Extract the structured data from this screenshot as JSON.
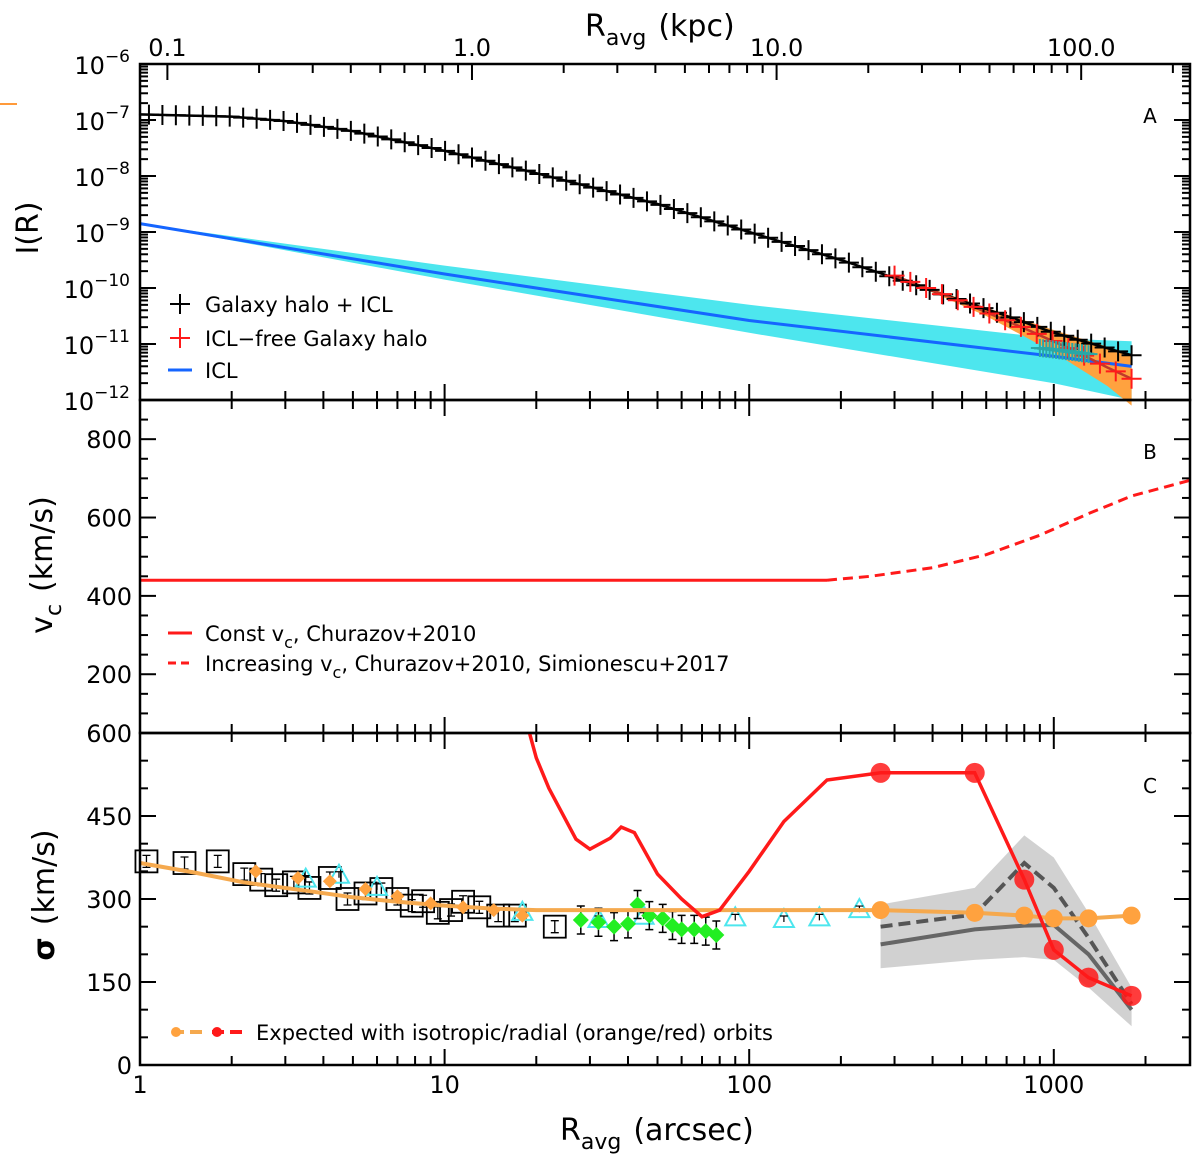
{
  "colors": {
    "black": "#000000",
    "red": "#ff1a1a",
    "blue": "#1565ff",
    "cyan": "#4de6ee",
    "orange": "#ffa23f",
    "orange_line": "#f5a94e",
    "green": "#22ee22",
    "gray": "#666666",
    "lightgray": "#cccccc",
    "accent_mark": "#ff9a3a"
  },
  "chart_data": {
    "type": "line",
    "shared_x": {
      "label": "R",
      "label_sub": "avg",
      "label_unit": "(arcsec)",
      "scale": "log",
      "range": [
        1,
        2800
      ],
      "tick_labels": [
        {
          "v": 1,
          "t": "1"
        },
        {
          "v": 10,
          "t": "10"
        },
        {
          "v": 100,
          "t": "100"
        },
        {
          "v": 1000,
          "t": "1000"
        }
      ]
    },
    "top_x": {
      "label": "R",
      "label_sub": "avg",
      "label_unit": "(kpc)",
      "arcsec_per_kpc": 12.3,
      "tick_labels": [
        {
          "v": 0.1,
          "t": "0.1"
        },
        {
          "v": 1,
          "t": "1.0"
        },
        {
          "v": 10,
          "t": "10.0"
        },
        {
          "v": 100,
          "t": "100.0"
        }
      ]
    },
    "panels": [
      {
        "id": "A",
        "ylabel": "I(R)",
        "yscale": "log",
        "yrange_exp": [
          -12,
          -6
        ],
        "ytick_exps": [
          -12,
          -11,
          -10,
          -9,
          -8,
          -7,
          -6
        ],
        "ytick_base": "10",
        "ytick_sign": "−",
        "legend": [
          {
            "symbol": "plus",
            "color": "black",
            "text": "Galaxy halo + ICL"
          },
          {
            "symbol": "plus",
            "color": "red",
            "text": "ICL−free Galaxy halo"
          },
          {
            "symbol": "line",
            "color": "blue",
            "text": "ICL"
          }
        ],
        "halo_plus_icl_logI": [
          [
            1,
            -6.9
          ],
          [
            2,
            -6.94
          ],
          [
            3,
            -7.02
          ],
          [
            5,
            -7.2
          ],
          [
            10,
            -7.55
          ],
          [
            20,
            -7.95
          ],
          [
            50,
            -8.5
          ],
          [
            100,
            -9.0
          ],
          [
            200,
            -9.5
          ],
          [
            400,
            -10.05
          ],
          [
            700,
            -10.5
          ],
          [
            1000,
            -10.8
          ],
          [
            1800,
            -11.2
          ]
        ],
        "icl_free_logI": [
          [
            300,
            -9.78
          ],
          [
            500,
            -10.25
          ],
          [
            800,
            -10.72
          ],
          [
            1200,
            -11.15
          ],
          [
            1500,
            -11.42
          ],
          [
            1800,
            -11.62
          ]
        ],
        "icl_free_band_upper": [
          [
            300,
            -9.78
          ],
          [
            600,
            -10.35
          ],
          [
            1000,
            -10.75
          ],
          [
            1500,
            -11.05
          ],
          [
            1800,
            -11.2
          ]
        ],
        "icl_free_band_lower": [
          [
            300,
            -9.78
          ],
          [
            600,
            -10.5
          ],
          [
            1000,
            -11.15
          ],
          [
            1500,
            -11.75
          ],
          [
            1800,
            -12.1
          ]
        ],
        "icl_logI": [
          [
            1,
            -8.85
          ],
          [
            10,
            -9.75
          ],
          [
            100,
            -10.58
          ],
          [
            1000,
            -11.22
          ],
          [
            1800,
            -11.4
          ]
        ],
        "icl_band_upper": [
          [
            1,
            -8.85
          ],
          [
            10,
            -9.6
          ],
          [
            100,
            -10.3
          ],
          [
            1000,
            -10.9
          ],
          [
            1800,
            -10.95
          ]
        ],
        "icl_band_lower": [
          [
            1,
            -8.85
          ],
          [
            10,
            -9.85
          ],
          [
            100,
            -10.8
          ],
          [
            1000,
            -11.7
          ],
          [
            1800,
            -12.0
          ]
        ]
      },
      {
        "id": "B",
        "ylabel": "v",
        "ylabel_sub": "c",
        "ylabel_unit": "(km/s)",
        "yscale": "linear",
        "yrange": [
          50,
          900
        ],
        "yticks": [
          200,
          400,
          600,
          800
        ],
        "legend": [
          {
            "style": "solid",
            "color": "red",
            "text": "Const v",
            "sub": "c",
            "tail": ", Churazov+2010"
          },
          {
            "style": "dashed",
            "color": "red",
            "text": "Increasing v",
            "sub": "c",
            "tail": ", Churazov+2010, Simionescu+2017"
          }
        ],
        "const_vc": [
          [
            1,
            440
          ],
          [
            180,
            440
          ]
        ],
        "increasing_vc": [
          [
            180,
            440
          ],
          [
            250,
            450
          ],
          [
            400,
            472
          ],
          [
            600,
            505
          ],
          [
            900,
            555
          ],
          [
            1300,
            610
          ],
          [
            1800,
            655
          ],
          [
            2800,
            695
          ]
        ]
      },
      {
        "id": "C",
        "ylabel": "σ",
        "ylabel_unit": "(km/s)",
        "yscale": "linear",
        "yrange": [
          0,
          600
        ],
        "yticks": [
          0,
          150,
          300,
          450,
          600
        ],
        "legend": [
          {
            "text": "Expected with isotropic/radial (orange/red) orbits"
          }
        ],
        "isotropic_model": [
          [
            1,
            365
          ],
          [
            1.5,
            348
          ],
          [
            2.2,
            330
          ],
          [
            3.5,
            315
          ],
          [
            5,
            303
          ],
          [
            7,
            295
          ],
          [
            10,
            288
          ],
          [
            14,
            283
          ],
          [
            20,
            280
          ],
          [
            50,
            280
          ],
          [
            100,
            280
          ],
          [
            270,
            280
          ],
          [
            550,
            275
          ],
          [
            800,
            270
          ],
          [
            1000,
            265
          ],
          [
            1300,
            265
          ],
          [
            1800,
            270
          ]
        ],
        "isotropic_points": [
          [
            2.4,
            350
          ],
          [
            3.3,
            338
          ],
          [
            4.2,
            332
          ],
          [
            5.5,
            318
          ],
          [
            7,
            305
          ],
          [
            9,
            292
          ],
          [
            11.5,
            285
          ],
          [
            14.5,
            280
          ],
          [
            18,
            270
          ],
          [
            270,
            280
          ],
          [
            550,
            275
          ],
          [
            800,
            270
          ],
          [
            1000,
            265
          ],
          [
            1300,
            265
          ],
          [
            1800,
            270
          ]
        ],
        "radial_model": [
          [
            19,
            600
          ],
          [
            20,
            555
          ],
          [
            22,
            500
          ],
          [
            27,
            408
          ],
          [
            30,
            390
          ],
          [
            35,
            410
          ],
          [
            38,
            430
          ],
          [
            42,
            420
          ],
          [
            50,
            345
          ],
          [
            60,
            300
          ],
          [
            70,
            268
          ],
          [
            80,
            280
          ],
          [
            100,
            350
          ],
          [
            130,
            440
          ],
          [
            180,
            515
          ],
          [
            270,
            528
          ],
          [
            550,
            528
          ],
          [
            800,
            335
          ],
          [
            1000,
            208
          ],
          [
            1300,
            158
          ],
          [
            1800,
            125
          ]
        ],
        "radial_points": [
          [
            270,
            528
          ],
          [
            550,
            528
          ],
          [
            800,
            335
          ],
          [
            1000,
            208
          ],
          [
            1300,
            158
          ],
          [
            1800,
            125
          ]
        ],
        "stars_squares": [
          [
            1.05,
            368
          ],
          [
            1.4,
            365
          ],
          [
            1.8,
            368
          ],
          [
            2.2,
            345
          ],
          [
            2.5,
            335
          ],
          [
            2.8,
            325
          ],
          [
            3.2,
            330
          ],
          [
            3.6,
            320
          ],
          [
            4.2,
            338
          ],
          [
            4.8,
            300
          ],
          [
            5.5,
            310
          ],
          [
            6.2,
            318
          ],
          [
            7,
            300
          ],
          [
            7.8,
            288
          ],
          [
            8.5,
            296
          ],
          [
            9.5,
            275
          ],
          [
            10.5,
            280
          ],
          [
            11.5,
            295
          ],
          [
            13,
            285
          ],
          [
            15,
            270
          ],
          [
            17,
            270
          ],
          [
            23,
            250
          ]
        ],
        "triangles_cyan": [
          [
            3.5,
            335
          ],
          [
            4.5,
            342
          ],
          [
            6,
            320
          ],
          [
            18,
            275
          ],
          [
            32,
            262
          ],
          [
            45,
            268
          ],
          [
            90,
            265
          ],
          [
            130,
            262
          ],
          [
            170,
            265
          ],
          [
            230,
            280
          ]
        ],
        "diamonds_green": [
          [
            28,
            262
          ],
          [
            32,
            258
          ],
          [
            36,
            250
          ],
          [
            40,
            255
          ],
          [
            43,
            290
          ],
          [
            47,
            270
          ],
          [
            52,
            265
          ],
          [
            56,
            252
          ],
          [
            60,
            245
          ],
          [
            66,
            245
          ],
          [
            72,
            242
          ],
          [
            78,
            235
          ]
        ],
        "gray_dashed": [
          [
            270,
            250
          ],
          [
            550,
            272
          ],
          [
            800,
            365
          ],
          [
            1000,
            320
          ],
          [
            1300,
            230
          ],
          [
            1800,
            110
          ]
        ],
        "gray_solid": [
          [
            270,
            218
          ],
          [
            550,
            245
          ],
          [
            800,
            252
          ],
          [
            1000,
            253
          ],
          [
            1300,
            200
          ],
          [
            1800,
            100
          ]
        ],
        "gray_band_upper": [
          [
            270,
            290
          ],
          [
            550,
            320
          ],
          [
            800,
            415
          ],
          [
            1000,
            375
          ],
          [
            1300,
            275
          ],
          [
            1800,
            140
          ]
        ],
        "gray_band_lower": [
          [
            270,
            175
          ],
          [
            550,
            190
          ],
          [
            800,
            195
          ],
          [
            1000,
            190
          ],
          [
            1300,
            140
          ],
          [
            1800,
            70
          ]
        ]
      }
    ]
  }
}
